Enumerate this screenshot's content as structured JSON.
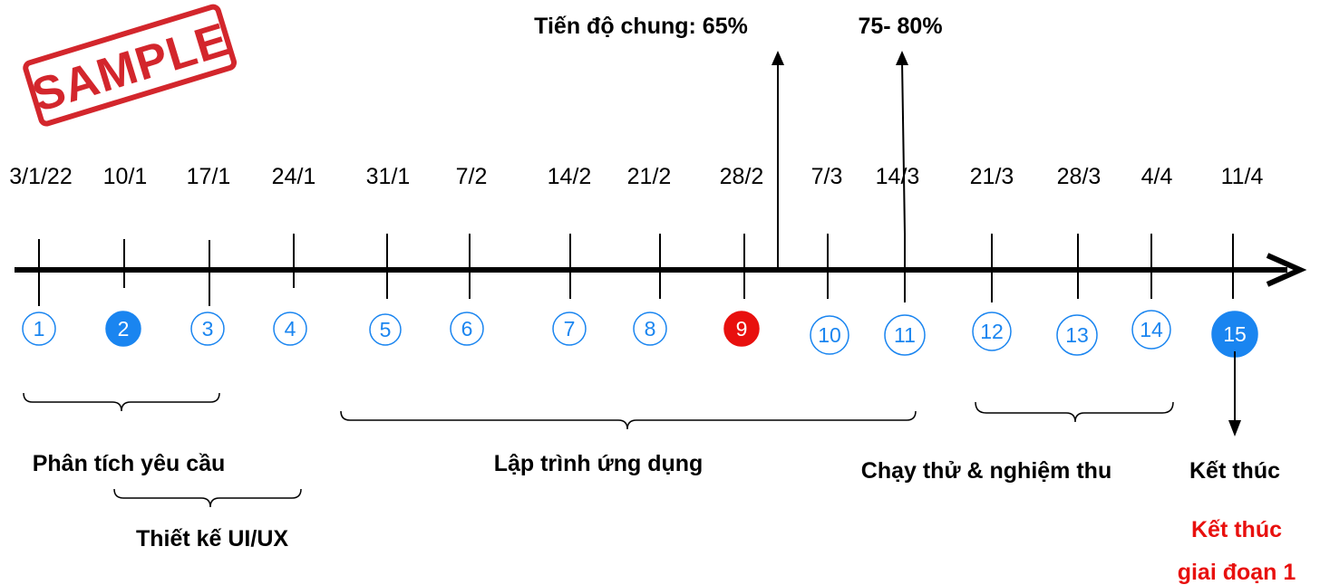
{
  "stamp": {
    "text": "SAMPLE",
    "color": "#d3262c"
  },
  "progress": {
    "overall_label": "Tiến độ chung: 65%",
    "target_label": "75- 80%"
  },
  "dates": [
    "3/1/22",
    "10/1",
    "17/1",
    "24/1",
    "31/1",
    "7/2",
    "14/2",
    "21/2",
    "28/2",
    "7/3",
    "14/3",
    "21/3",
    "28/3",
    "4/4",
    "11/4"
  ],
  "milestones": [
    {
      "label": "1",
      "style": "outline"
    },
    {
      "label": "2",
      "style": "filled"
    },
    {
      "label": "3",
      "style": "outline"
    },
    {
      "label": "4",
      "style": "outline"
    },
    {
      "label": "5",
      "style": "outline"
    },
    {
      "label": "6",
      "style": "outline"
    },
    {
      "label": "7",
      "style": "outline"
    },
    {
      "label": "8",
      "style": "outline"
    },
    {
      "label": "9",
      "style": "current"
    },
    {
      "label": "10",
      "style": "outline"
    },
    {
      "label": "11",
      "style": "outline"
    },
    {
      "label": "12",
      "style": "outline"
    },
    {
      "label": "13",
      "style": "outline"
    },
    {
      "label": "14",
      "style": "outline"
    },
    {
      "label": "15",
      "style": "filled"
    }
  ],
  "phases": {
    "analysis": "Phân tích yêu cầu",
    "design": "Thiết kế UI/UX",
    "development": "Lập trình ứng dụng",
    "testing": "Chạy thử & nghiệm thu",
    "end": "Kết thúc",
    "phase1_end_line1": "Kết thúc",
    "phase1_end_line2": "giai đoạn 1"
  },
  "colors": {
    "milestone_blue": "#1a85f0",
    "milestone_current": "#e8100e",
    "axis": "#000000",
    "phase1_end_text": "#e8100e"
  }
}
